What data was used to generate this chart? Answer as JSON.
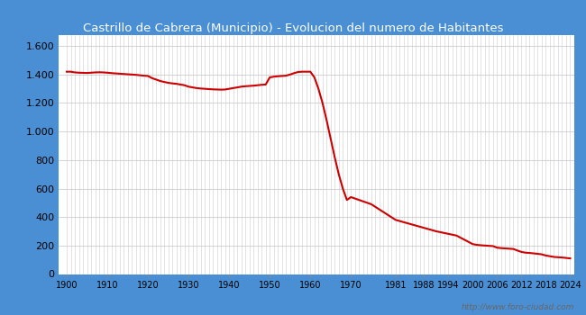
{
  "title": "Castrillo de Cabrera (Municipio) - Evolucion del numero de Habitantes",
  "title_color": "white",
  "title_bg_color": "#4a8fd4",
  "plot_bg_color": "#ffffff",
  "grid_color": "#cccccc",
  "line_color": "#cc0000",
  "line_width": 1.5,
  "x_tick_labels": [
    "1900",
    "1910",
    "1920",
    "1930",
    "1940",
    "1950",
    "1960",
    "1970",
    "1981",
    "1988",
    "1994",
    "2000",
    "2006",
    "2012",
    "2018",
    "2024"
  ],
  "x_tick_positions": [
    1900,
    1910,
    1920,
    1930,
    1940,
    1950,
    1960,
    1970,
    1981,
    1988,
    1994,
    2000,
    2006,
    2012,
    2018,
    2024
  ],
  "y_ticks": [
    0,
    200,
    400,
    600,
    800,
    1000,
    1200,
    1400,
    1600
  ],
  "ylim": [
    0,
    1680
  ],
  "xlim": [
    1898,
    2025
  ],
  "watermark": "http://www.foro-ciudad.com",
  "data_years": [
    1900,
    1901,
    1902,
    1903,
    1904,
    1905,
    1906,
    1907,
    1908,
    1909,
    1910,
    1911,
    1912,
    1913,
    1914,
    1915,
    1916,
    1917,
    1918,
    1919,
    1920,
    1921,
    1922,
    1923,
    1924,
    1925,
    1926,
    1927,
    1928,
    1929,
    1930,
    1931,
    1932,
    1933,
    1934,
    1935,
    1936,
    1937,
    1938,
    1939,
    1940,
    1941,
    1942,
    1943,
    1944,
    1945,
    1946,
    1947,
    1948,
    1949,
    1950,
    1951,
    1952,
    1953,
    1954,
    1955,
    1956,
    1957,
    1958,
    1959,
    1960,
    1961,
    1962,
    1963,
    1964,
    1965,
    1966,
    1967,
    1968,
    1969,
    1970,
    1975,
    1981,
    1986,
    1991,
    1996,
    2000,
    2001,
    2002,
    2003,
    2004,
    2005,
    2006,
    2007,
    2008,
    2009,
    2010,
    2011,
    2012,
    2013,
    2014,
    2015,
    2016,
    2017,
    2018,
    2019,
    2020,
    2021,
    2022,
    2023,
    2024
  ],
  "data_values": [
    1420,
    1420,
    1415,
    1413,
    1412,
    1411,
    1413,
    1415,
    1416,
    1415,
    1413,
    1410,
    1408,
    1406,
    1404,
    1402,
    1400,
    1398,
    1395,
    1392,
    1390,
    1375,
    1365,
    1355,
    1348,
    1342,
    1338,
    1335,
    1330,
    1325,
    1315,
    1310,
    1305,
    1302,
    1300,
    1298,
    1296,
    1295,
    1294,
    1295,
    1300,
    1305,
    1310,
    1315,
    1318,
    1320,
    1322,
    1325,
    1328,
    1330,
    1380,
    1385,
    1388,
    1390,
    1392,
    1400,
    1410,
    1418,
    1420,
    1420,
    1420,
    1380,
    1300,
    1200,
    1080,
    950,
    820,
    700,
    600,
    520,
    540,
    490,
    380,
    340,
    300,
    270,
    210,
    205,
    202,
    200,
    198,
    196,
    185,
    182,
    180,
    178,
    176,
    165,
    155,
    150,
    148,
    145,
    142,
    138,
    130,
    125,
    120,
    118,
    116,
    113,
    110
  ]
}
